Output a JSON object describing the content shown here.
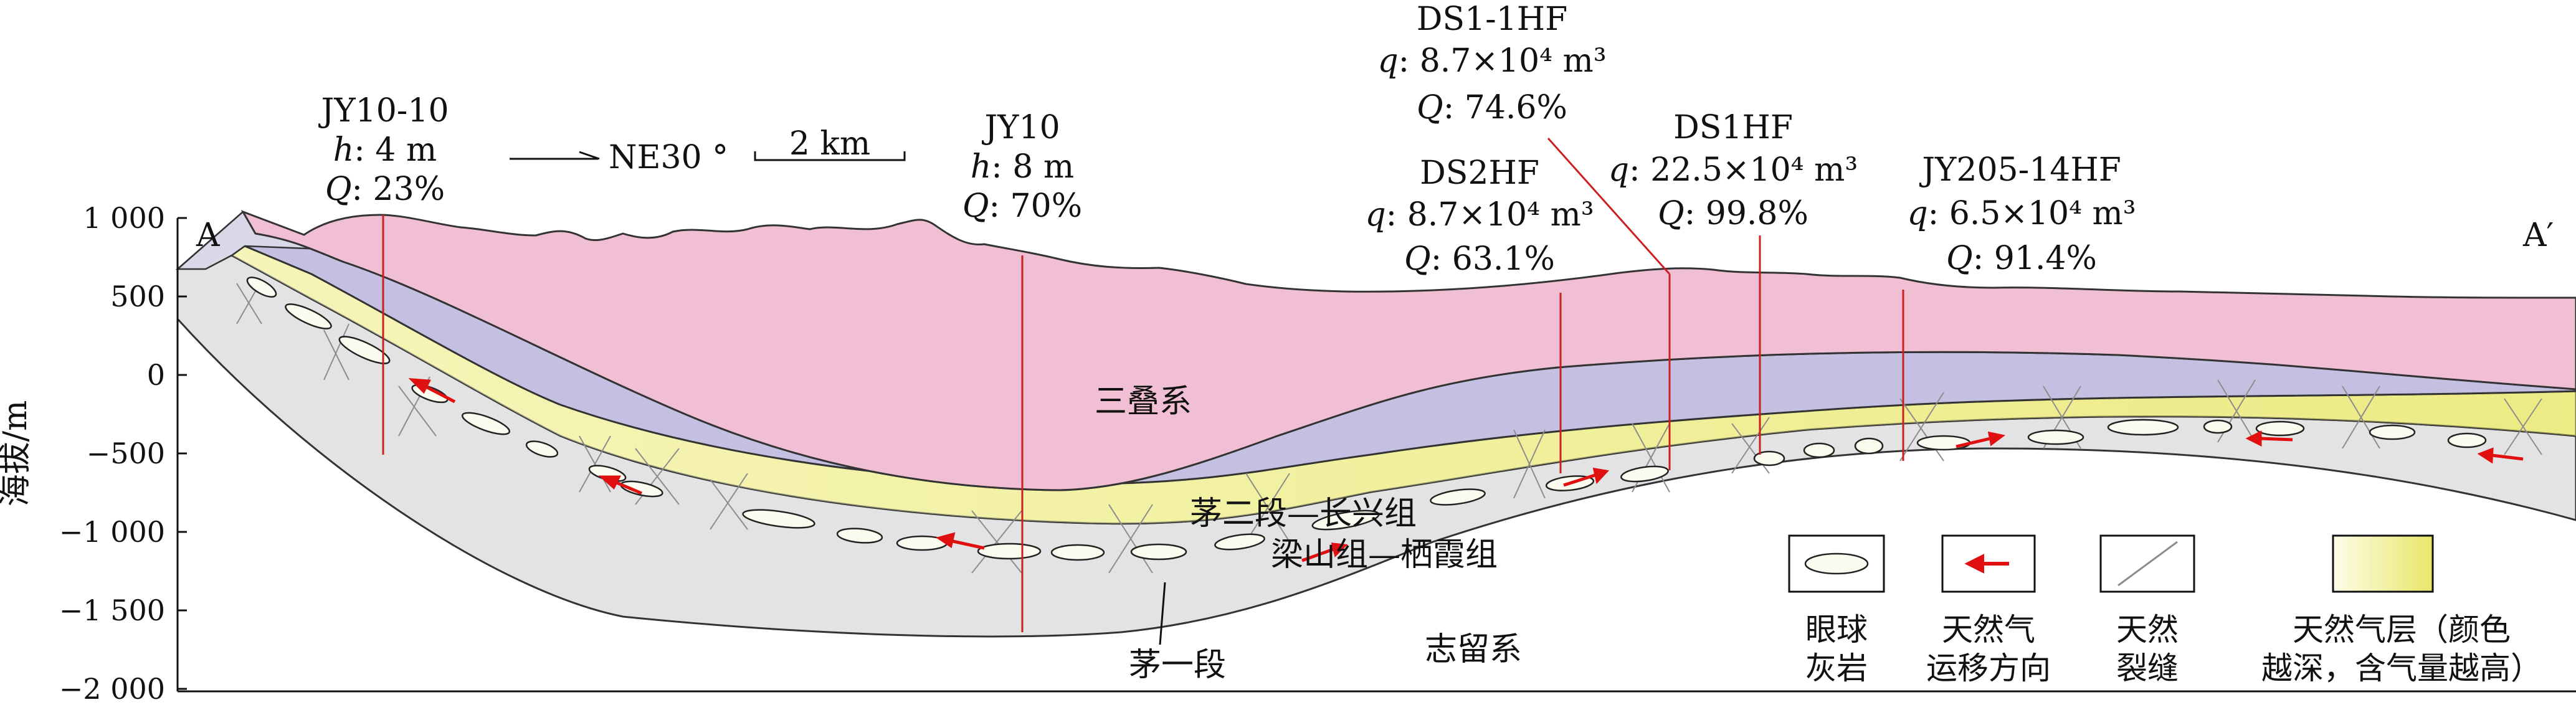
{
  "endpoints": {
    "left": "A",
    "right": "A′"
  },
  "compass": {
    "text": "NE30 °"
  },
  "scale_bar": {
    "text": "2 km"
  },
  "y_axis": {
    "label": "海拔/m",
    "ticks": [
      "1 000",
      "500",
      "0",
      "−500",
      "−1 000",
      "−1 500",
      "−2 000"
    ]
  },
  "wells": [
    {
      "name": "JY10-10",
      "l2_sym": "h",
      "l2_val": ": 4 m",
      "l3_sym": "Q",
      "l3_val": ": 23%"
    },
    {
      "name": "JY10",
      "l2_sym": "h",
      "l2_val": ": 8 m",
      "l3_sym": "Q",
      "l3_val": ": 70%"
    },
    {
      "name": "DS1-1HF",
      "l2_sym": "q",
      "l2_val": ": 8.7×10⁴ m³",
      "l3_sym": "Q",
      "l3_val": ": 74.6%"
    },
    {
      "name": "DS2HF",
      "l2_sym": "q",
      "l2_val": ": 8.7×10⁴ m³",
      "l3_sym": "Q",
      "l3_val": ": 63.1%"
    },
    {
      "name": "DS1HF",
      "l2_sym": "q",
      "l2_val": ": 22.5×10⁴ m³",
      "l3_sym": "Q",
      "l3_val": ": 99.8%"
    },
    {
      "name": "JY205-14HF",
      "l2_sym": "q",
      "l2_val": ": 6.5×10⁴ m³",
      "l3_sym": "Q",
      "l3_val": ": 91.4%"
    }
  ],
  "formations": {
    "triassic": "三叠系",
    "changxing": "茅二段—长兴组",
    "qixia": "梁山组—栖霞组",
    "mao1": "茅一段",
    "silurian": "志留系"
  },
  "legend": {
    "augen": [
      "眼球",
      "灰岩"
    ],
    "migration": [
      "天然气",
      "运移方向"
    ],
    "fracture": [
      "天然",
      "裂缝"
    ],
    "gas_layer": [
      "天然气层（颜色",
      "越深，含气量越高）"
    ]
  },
  "colors": {
    "triassic": "#f1bfd3",
    "purple": "#c4c0e2",
    "yellow": "#f1ef9a",
    "silurian": "#e3e3e3",
    "well_line": "#cc1f1f",
    "arrow": "#e01010"
  }
}
